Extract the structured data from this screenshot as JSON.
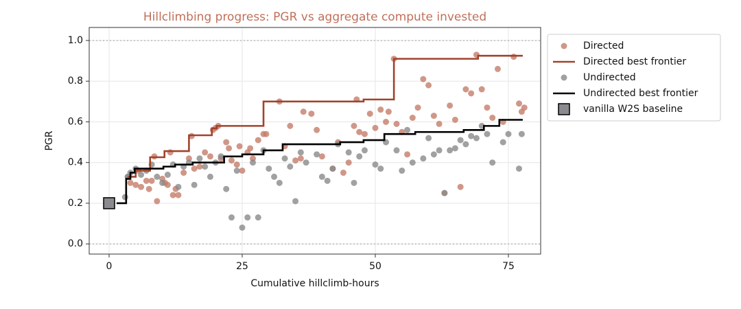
{
  "chart_data": {
    "type": "scatter",
    "title": "Hillclimbing progress: PGR vs aggregate compute invested",
    "x_label": "Cumulative hillclimb-hours",
    "y_label": "PGR",
    "xlim": [
      -3.74,
      81.06
    ],
    "ylim": [
      -0.05,
      1.064
    ],
    "xticks": [
      0,
      25,
      50,
      75
    ],
    "yticks": [
      {
        "value": 0,
        "label": "0.0"
      },
      0.2,
      0.4,
      0.6,
      0.8,
      {
        "value": 1,
        "label": "1.0"
      }
    ],
    "reference_lines": [
      0,
      1
    ],
    "grid": true,
    "legend": "outside right",
    "series": [
      {
        "name": "Directed",
        "mode": "scatter",
        "color": "#c47d6a",
        "x": [
          3.5,
          4,
          5,
          5.5,
          6,
          7,
          7.5,
          8,
          8.5,
          9,
          10,
          10.5,
          11,
          11.5,
          12,
          12.5,
          13,
          14,
          15,
          15.5,
          16,
          17,
          18,
          19,
          19.5,
          20,
          20.5,
          21,
          22,
          22.5,
          23,
          24,
          24.5,
          25,
          26,
          26.5,
          27,
          28,
          29,
          29.5,
          32,
          33,
          34,
          35,
          36,
          36.5,
          38,
          39,
          40,
          42,
          43,
          44,
          45,
          46,
          46.5,
          47,
          48,
          49,
          50,
          51,
          52,
          52.5,
          53.5,
          54,
          55,
          56,
          57,
          58,
          59,
          60,
          61,
          62,
          63,
          64,
          65,
          66,
          67,
          68,
          69,
          70,
          71,
          72,
          73,
          74,
          76,
          77,
          77.5,
          78
        ],
        "values": [
          0.33,
          0.3,
          0.29,
          0.36,
          0.28,
          0.31,
          0.27,
          0.31,
          0.43,
          0.21,
          0.32,
          0.3,
          0.29,
          0.45,
          0.24,
          0.27,
          0.24,
          0.35,
          0.42,
          0.53,
          0.37,
          0.38,
          0.45,
          0.43,
          0.56,
          0.57,
          0.58,
          0.42,
          0.5,
          0.47,
          0.41,
          0.39,
          0.48,
          0.36,
          0.45,
          0.47,
          0.42,
          0.51,
          0.54,
          0.54,
          0.7,
          0.48,
          0.58,
          0.41,
          0.42,
          0.65,
          0.64,
          0.56,
          0.43,
          0.37,
          0.5,
          0.35,
          0.4,
          0.58,
          0.71,
          0.55,
          0.54,
          0.64,
          0.57,
          0.66,
          0.6,
          0.65,
          0.91,
          0.59,
          0.55,
          0.44,
          0.62,
          0.67,
          0.81,
          0.78,
          0.63,
          0.59,
          0.25,
          0.68,
          0.61,
          0.28,
          0.76,
          0.74,
          0.93,
          0.76,
          0.67,
          0.62,
          0.86,
          0.6,
          0.92,
          0.69,
          0.65,
          0.67
        ]
      },
      {
        "name": "Directed best frontier",
        "mode": "step",
        "color": "#a0432c",
        "x": [
          3.5,
          5,
          7.7,
          10.4,
          15,
          19.3,
          20.2,
          29,
          47.8,
          53.5,
          69.3,
          77.7
        ],
        "values": [
          0.33,
          0.36,
          0.426,
          0.456,
          0.534,
          0.568,
          0.58,
          0.7,
          0.71,
          0.91,
          0.925,
          0.925
        ]
      },
      {
        "name": "Undirected",
        "mode": "scatter",
        "color": "#8a8a8a",
        "x": [
          3,
          3.5,
          4,
          5,
          6,
          7,
          8,
          9,
          10,
          11,
          12,
          13,
          14,
          15,
          16,
          17,
          18,
          19,
          20,
          21,
          22,
          23,
          24,
          25,
          26,
          27,
          28,
          29,
          30,
          31,
          32,
          33,
          34,
          35,
          36,
          37,
          39,
          40,
          41,
          42,
          43,
          45,
          46,
          47,
          48,
          50,
          51,
          52,
          54,
          55,
          56,
          57,
          59,
          60,
          61,
          62,
          63,
          64,
          65,
          66,
          67,
          68,
          69,
          70,
          71,
          72,
          74,
          75,
          77,
          77.5
        ],
        "values": [
          0.23,
          0.33,
          0.35,
          0.37,
          0.34,
          0.36,
          0.39,
          0.33,
          0.3,
          0.34,
          0.39,
          0.28,
          0.38,
          0.4,
          0.29,
          0.42,
          0.38,
          0.33,
          0.4,
          0.43,
          0.27,
          0.13,
          0.36,
          0.08,
          0.13,
          0.4,
          0.13,
          0.46,
          0.37,
          0.33,
          0.3,
          0.42,
          0.38,
          0.21,
          0.45,
          0.4,
          0.44,
          0.33,
          0.31,
          0.37,
          0.49,
          0.45,
          0.3,
          0.43,
          0.46,
          0.39,
          0.37,
          0.5,
          0.46,
          0.36,
          0.56,
          0.4,
          0.42,
          0.52,
          0.44,
          0.46,
          0.25,
          0.46,
          0.47,
          0.51,
          0.49,
          0.53,
          0.52,
          0.58,
          0.54,
          0.4,
          0.5,
          0.54,
          0.37,
          0.54
        ]
      },
      {
        "name": "Undirected best frontier",
        "mode": "step",
        "color": "#000000",
        "x": [
          1.4,
          3.2,
          4,
          4.8,
          10.2,
          12.4,
          15.7,
          21.6,
          25,
          29,
          32.6,
          43.4,
          47.8,
          51.7,
          57.5,
          66.6,
          70.4,
          73.3,
          77.7
        ],
        "values": [
          0.2,
          0.32,
          0.35,
          0.37,
          0.38,
          0.39,
          0.4,
          0.43,
          0.44,
          0.46,
          0.49,
          0.5,
          0.51,
          0.54,
          0.55,
          0.56,
          0.58,
          0.61,
          0.61
        ]
      },
      {
        "name": "vanilla W2S baseline",
        "mode": "square",
        "color": "#8a8a8f",
        "x": [
          0
        ],
        "values": [
          0.2
        ]
      }
    ]
  }
}
